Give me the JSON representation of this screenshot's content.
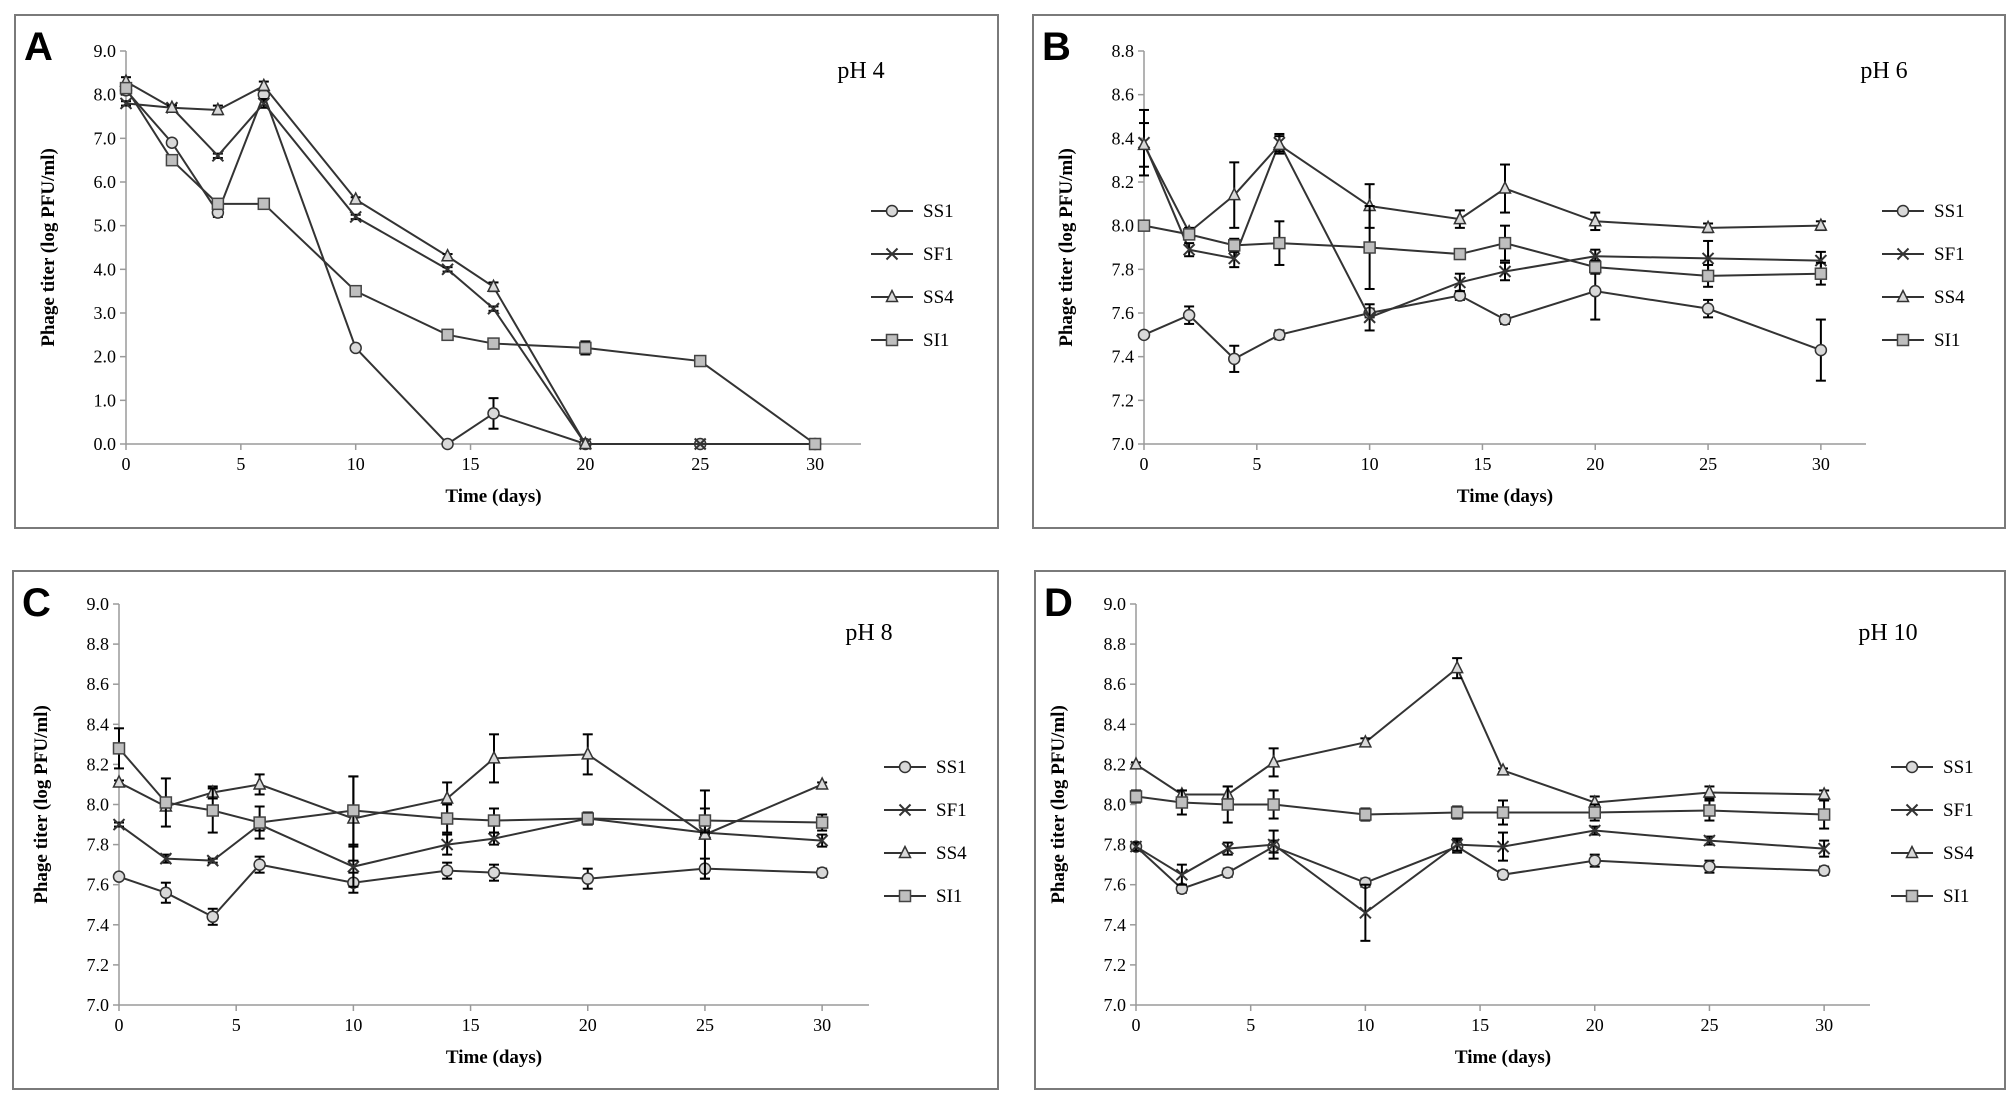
{
  "legend_labels": [
    "SS1",
    "SF1",
    "SS4",
    "SI1"
  ],
  "chart_data": [
    {
      "panel": "A",
      "type": "line",
      "title": "pH 4",
      "xlabel": "Time (days)",
      "ylabel": "Phage titer (log PFU/ml)",
      "x": [
        0,
        2,
        4,
        6,
        10,
        14,
        16,
        20,
        25,
        30
      ],
      "xticks": [
        0,
        5,
        10,
        15,
        20,
        25,
        30
      ],
      "xlim": [
        0,
        32
      ],
      "ylim": [
        0,
        9
      ],
      "yticks": [
        "0.0",
        "1.0",
        "2.0",
        "3.0",
        "4.0",
        "5.0",
        "6.0",
        "7.0",
        "8.0",
        "9.0"
      ],
      "series": [
        {
          "name": "SS1",
          "marker": "circle",
          "values": [
            8.1,
            6.9,
            5.3,
            8.0,
            2.2,
            0.0,
            0.7,
            0.0,
            0.0,
            0.0
          ],
          "errors": [
            0.1,
            0.05,
            0.1,
            0.1,
            0.05,
            0,
            0.35,
            0,
            0,
            0
          ]
        },
        {
          "name": "SF1",
          "marker": "cross",
          "values": [
            7.8,
            7.7,
            6.6,
            7.8,
            5.2,
            4.0,
            3.1,
            0.0,
            0.0,
            0.0
          ],
          "errors": [
            0.05,
            0.05,
            0.05,
            0.1,
            0.05,
            0.05,
            0.05,
            0,
            0,
            0
          ]
        },
        {
          "name": "SS4",
          "marker": "triangle",
          "values": [
            8.3,
            7.7,
            7.65,
            8.2,
            5.6,
            4.3,
            3.6,
            0.0,
            null,
            null
          ],
          "errors": [
            0.1,
            0.05,
            0.1,
            0.1,
            0.05,
            0.05,
            0.1,
            0,
            0,
            0
          ]
        },
        {
          "name": "SI1",
          "marker": "square",
          "values": [
            8.15,
            6.5,
            5.5,
            5.5,
            3.5,
            2.5,
            2.3,
            2.2,
            1.9,
            0.0
          ],
          "errors": [
            0.1,
            0.05,
            0.05,
            0.05,
            0.1,
            0.05,
            0.05,
            0.15,
            0.1,
            0
          ]
        }
      ]
    },
    {
      "panel": "B",
      "type": "line",
      "title": "pH 6",
      "xlabel": "Time (days)",
      "ylabel": "Phage titer (log PFU/ml)",
      "x": [
        0,
        2,
        4,
        6,
        10,
        14,
        16,
        20,
        25,
        30
      ],
      "xticks": [
        0,
        5,
        10,
        15,
        20,
        25,
        30
      ],
      "xlim": [
        0,
        32
      ],
      "ylim": [
        7.0,
        8.8
      ],
      "yticks": [
        "7.0",
        "7.2",
        "7.4",
        "7.6",
        "7.8",
        "8.0",
        "8.2",
        "8.4",
        "8.6",
        "8.8"
      ],
      "series": [
        {
          "name": "SS1",
          "marker": "circle",
          "values": [
            7.5,
            7.59,
            7.39,
            7.5,
            7.6,
            7.68,
            7.57,
            7.7,
            7.62,
            7.43
          ],
          "errors": [
            0.01,
            0.04,
            0.06,
            0.02,
            0.02,
            0.02,
            0.02,
            0.13,
            0.04,
            0.14
          ]
        },
        {
          "name": "SF1",
          "marker": "cross",
          "values": [
            8.38,
            7.89,
            7.85,
            8.38,
            7.58,
            7.74,
            7.79,
            7.86,
            7.85,
            7.84
          ],
          "errors": [
            0.15,
            0.03,
            0.04,
            0.04,
            0.06,
            0.04,
            0.04,
            0.03,
            0.08,
            0.04
          ]
        },
        {
          "name": "SS4",
          "marker": "triangle",
          "values": [
            8.37,
            7.97,
            8.14,
            8.37,
            8.09,
            8.03,
            8.17,
            8.02,
            7.99,
            8.0
          ],
          "errors": [
            0.1,
            0.02,
            0.15,
            0.04,
            0.1,
            0.04,
            0.11,
            0.04,
            0.02,
            0.02
          ]
        },
        {
          "name": "SI1",
          "marker": "square",
          "values": [
            8.0,
            7.96,
            7.91,
            7.92,
            7.9,
            7.87,
            7.92,
            7.81,
            7.77,
            7.78
          ],
          "errors": [
            0.02,
            0.02,
            0.03,
            0.1,
            0.19,
            0.02,
            0.08,
            0.03,
            0.05,
            0.05
          ]
        }
      ]
    },
    {
      "panel": "C",
      "type": "line",
      "title": "pH 8",
      "xlabel": "Time (days)",
      "ylabel": "Phage titer (log PFU/ml)",
      "x": [
        0,
        2,
        4,
        6,
        10,
        14,
        16,
        20,
        25,
        30
      ],
      "xticks": [
        0,
        5,
        10,
        15,
        20,
        25,
        30
      ],
      "xlim": [
        0,
        32
      ],
      "ylim": [
        7.0,
        9.0
      ],
      "yticks": [
        "7.0",
        "7.2",
        "7.4",
        "7.6",
        "7.8",
        "8.0",
        "8.2",
        "8.4",
        "8.6",
        "8.8",
        "9.0"
      ],
      "series": [
        {
          "name": "SS1",
          "marker": "circle",
          "values": [
            7.64,
            7.56,
            7.44,
            7.7,
            7.61,
            7.67,
            7.66,
            7.63,
            7.68,
            7.66
          ],
          "errors": [
            0.01,
            0.05,
            0.04,
            0.04,
            0.05,
            0.04,
            0.04,
            0.05,
            0.05,
            0.02
          ]
        },
        {
          "name": "SF1",
          "marker": "cross",
          "values": [
            7.9,
            7.73,
            7.72,
            7.9,
            7.69,
            7.8,
            7.83,
            7.93,
            7.86,
            7.82
          ],
          "errors": [
            0.01,
            0.02,
            0.01,
            0.03,
            0.1,
            0.05,
            0.03,
            0.03,
            0.01,
            0.03
          ]
        },
        {
          "name": "SS4",
          "marker": "triangle",
          "values": [
            8.11,
            7.99,
            8.06,
            8.1,
            7.93,
            8.03,
            8.23,
            8.25,
            7.85,
            8.1
          ],
          "errors": [
            0.01,
            0.02,
            0.03,
            0.05,
            0.21,
            0.08,
            0.12,
            0.1,
            0.22,
            0.01
          ]
        },
        {
          "name": "SI1",
          "marker": "square",
          "values": [
            8.28,
            8.01,
            7.97,
            7.91,
            7.97,
            7.93,
            7.92,
            7.93,
            7.92,
            7.91
          ],
          "errors": [
            0.1,
            0.12,
            0.11,
            0.08,
            0.17,
            0.07,
            0.06,
            0.03,
            0.06,
            0.04
          ]
        }
      ]
    },
    {
      "panel": "D",
      "type": "line",
      "title": "pH 10",
      "xlabel": "Time (days)",
      "ylabel": "Phage titer (log PFU/ml)",
      "x": [
        0,
        2,
        4,
        6,
        10,
        14,
        16,
        20,
        25,
        30
      ],
      "xticks": [
        0,
        5,
        10,
        15,
        20,
        25,
        30
      ],
      "xlim": [
        0,
        32
      ],
      "ylim": [
        7.0,
        9.0
      ],
      "yticks": [
        "7.0",
        "7.2",
        "7.4",
        "7.6",
        "7.8",
        "8.0",
        "8.2",
        "8.4",
        "8.6",
        "8.8",
        "9.0"
      ],
      "series": [
        {
          "name": "SS1",
          "marker": "circle",
          "values": [
            7.79,
            7.58,
            7.66,
            7.79,
            7.61,
            7.79,
            7.65,
            7.72,
            7.69,
            7.67
          ],
          "errors": [
            0.02,
            0.02,
            0.02,
            0.03,
            0.02,
            0.03,
            0.02,
            0.03,
            0.03,
            0.02
          ]
        },
        {
          "name": "SF1",
          "marker": "cross",
          "values": [
            7.79,
            7.65,
            7.78,
            7.8,
            7.46,
            7.8,
            7.79,
            7.87,
            7.82,
            7.78
          ],
          "errors": [
            0.02,
            0.05,
            0.03,
            0.07,
            0.14,
            0.03,
            0.07,
            0.02,
            0.02,
            0.04
          ]
        },
        {
          "name": "SS4",
          "marker": "triangle",
          "values": [
            8.2,
            8.05,
            8.05,
            8.21,
            8.31,
            8.68,
            8.17,
            8.01,
            8.06,
            8.05
          ],
          "errors": [
            0.01,
            0.02,
            0.04,
            0.07,
            0.02,
            0.05,
            0.01,
            0.03,
            0.03,
            0.02
          ]
        },
        {
          "name": "SI1",
          "marker": "square",
          "values": [
            8.04,
            8.01,
            8.0,
            8.0,
            7.95,
            7.96,
            7.96,
            7.96,
            7.97,
            7.95
          ],
          "errors": [
            0.03,
            0.06,
            0.09,
            0.07,
            0.03,
            0.03,
            0.06,
            0.04,
            0.05,
            0.07
          ]
        }
      ]
    }
  ]
}
